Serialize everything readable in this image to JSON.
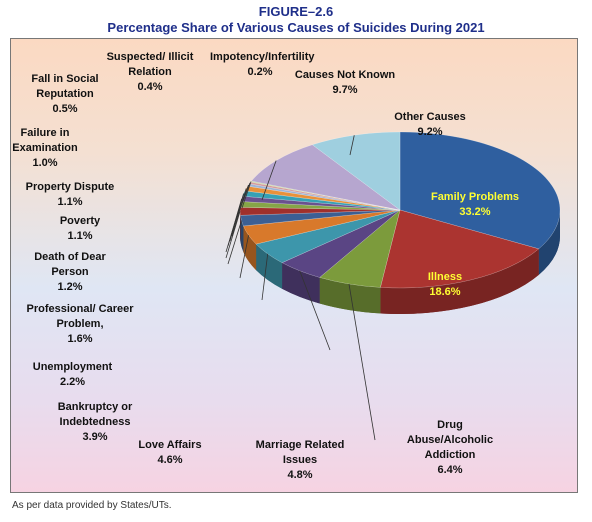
{
  "chart_data": {
    "type": "pie",
    "figure_label": "FIGURE–2.6",
    "title": "Percentage Share of Various Causes of Suicides During 2021",
    "categories": [
      "Family Problems",
      "Illness",
      "Drug Abuse/Alcoholic Addiction",
      "Marriage Related Issues",
      "Love Affairs",
      "Bankruptcy or Indebtedness",
      "Unemployment",
      "Professional/ Career Problem,",
      "Death of Dear Person",
      "Poverty",
      "Property Dispute",
      "Failure in Examination",
      "Fall in Social Reputation",
      "Suspected/ Illicit Relation",
      "Impotency/Infertility",
      "Causes Not Known",
      "Other Causes"
    ],
    "values": [
      33.2,
      18.6,
      6.4,
      4.8,
      4.6,
      3.9,
      2.2,
      1.6,
      1.2,
      1.1,
      1.1,
      1.0,
      0.5,
      0.4,
      0.2,
      9.7,
      9.2
    ],
    "value_labels": [
      "33.2%",
      "18.6%",
      "6.4%",
      "4.8%",
      "4.6%",
      "3.9%",
      "2.2%",
      "1.6%",
      "1.2%",
      "1.1%",
      "1.1%",
      "1.0%",
      "0.5%",
      "0.4%",
      "0.2%",
      "9.7%",
      "9.2%"
    ],
    "colors": [
      "#2f5f9f",
      "#ab3430",
      "#7c9b3c",
      "#5a4584",
      "#3d96ab",
      "#d8792b",
      "#3c5f93",
      "#a0302c",
      "#86a547",
      "#6a518f",
      "#37a1b5",
      "#e8913a",
      "#9fb4d6",
      "#d59c9c",
      "#c3d59a",
      "#b6a6cf",
      "#9fcfdf"
    ],
    "source": "As per data provided by States/UTs."
  }
}
